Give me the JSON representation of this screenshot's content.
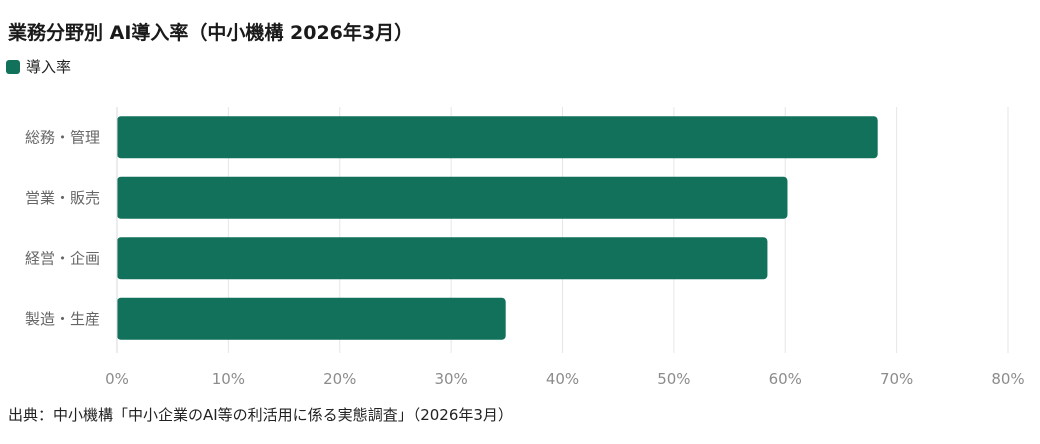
{
  "chart_data": {
    "type": "bar",
    "orientation": "horizontal",
    "title": "業務分野別 AI導入率（中小機構 2026年3月）",
    "categories": [
      "総務・管理",
      "営業・販売",
      "経営・企画",
      "製造・生産"
    ],
    "series": [
      {
        "name": "導入率",
        "values": [
          68.3,
          60.2,
          58.4,
          34.9
        ],
        "color": "#11715a"
      }
    ],
    "xlim": [
      0,
      80
    ],
    "xticks": [
      "0%",
      "10%",
      "20%",
      "30%",
      "40%",
      "50%",
      "60%",
      "70%",
      "80%"
    ],
    "grid": true,
    "legend_position": "top-left",
    "source": "出典：中小機構「中小企業のAI等の利活用に係る実態調査」（2026年3月）"
  },
  "colors": {
    "bar": "#11715a",
    "grid": "#e6e6e6",
    "tick_label": "#8c8c8c",
    "category_label": "#666666"
  }
}
